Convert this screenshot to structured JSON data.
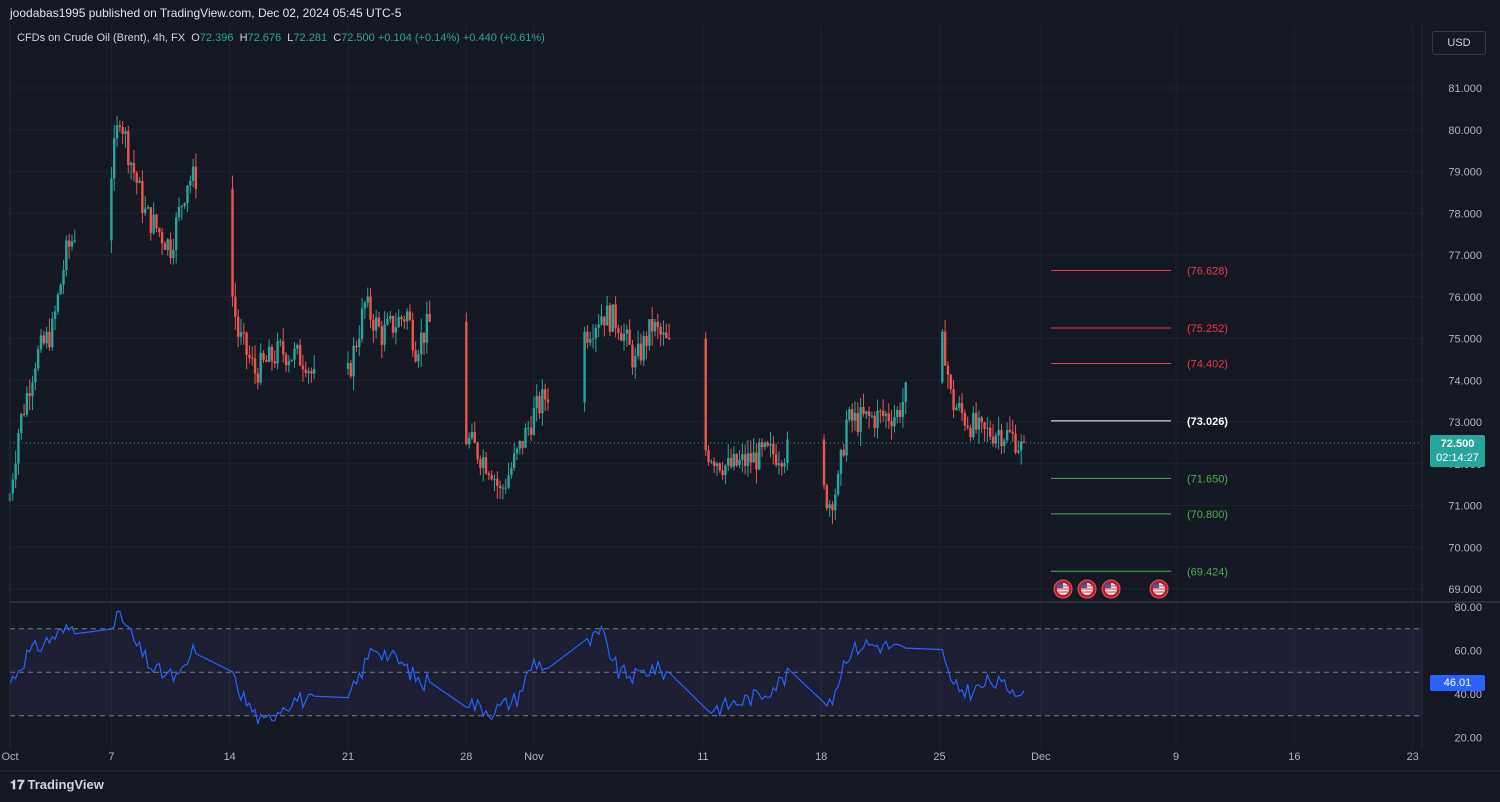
{
  "header": {
    "published": "joodabas1995 published on TradingView.com, Dec 02, 2024 05:45 UTC-5",
    "symbol": "CFDs on Crude Oil (Brent), 4h, FX",
    "ohlc": {
      "O": "72.396",
      "H": "72.676",
      "L": "72.281",
      "C": "72.500"
    },
    "change": "+0.104 (+0.14%)",
    "change2": "+0.440 (+0.61%)"
  },
  "currency_button": "USD",
  "price_tag": {
    "price": "72.500",
    "countdown": "02:14:27"
  },
  "rsi_tag": "46.01",
  "footer": {
    "logo_text": "TradingView"
  },
  "colors": {
    "up": "#26a69a",
    "down": "#ef5350",
    "rsi": "#2962ff",
    "background": "#141823"
  },
  "chart_data": [
    {
      "type": "candlestick",
      "title": "CFDs on Crude Oil (Brent), 4h, FX",
      "currency": "USD",
      "ylim": [
        69.0,
        81.0
      ],
      "y_ticks": [
        "81.000",
        "80.000",
        "79.000",
        "78.000",
        "77.000",
        "76.000",
        "75.000",
        "74.000",
        "73.000",
        "72.000",
        "71.000",
        "70.000",
        "69.000"
      ],
      "x_ticks": [
        {
          "label": "Oct",
          "day": 1
        },
        {
          "label": "7",
          "day": 7
        },
        {
          "label": "14",
          "day": 14
        },
        {
          "label": "21",
          "day": 21
        },
        {
          "label": "28",
          "day": 28
        },
        {
          "label": "Nov",
          "day": 32
        },
        {
          "label": "11",
          "day": 42
        },
        {
          "label": "18",
          "day": 49
        },
        {
          "label": "25",
          "day": 56
        },
        {
          "label": "Dec",
          "day": 62
        },
        {
          "label": "9",
          "day": 70
        },
        {
          "label": "16",
          "day": 77
        },
        {
          "label": "23",
          "day": 84
        }
      ],
      "close_anchors": [
        [
          1,
          71.3
        ],
        [
          1.5,
          72.8
        ],
        [
          2.5,
          74.5
        ],
        [
          3.5,
          75.2
        ],
        [
          4.3,
          77.0
        ],
        [
          5.5,
          78.2
        ],
        [
          7.0,
          79.0
        ],
        [
          7.5,
          80.4
        ],
        [
          8.0,
          79.5
        ],
        [
          9.0,
          78.0
        ],
        [
          10.5,
          77.2
        ],
        [
          11.5,
          78.8
        ],
        [
          12.5,
          78.9
        ],
        [
          13.5,
          77.8
        ],
        [
          14.5,
          75.1
        ],
        [
          15.5,
          74.2
        ],
        [
          17.0,
          74.7
        ],
        [
          18.5,
          74.5
        ],
        [
          20.0,
          73.0
        ],
        [
          21.0,
          74.1
        ],
        [
          22.0,
          75.8
        ],
        [
          23.0,
          75.1
        ],
        [
          24.5,
          75.6
        ],
        [
          25.0,
          74.8
        ],
        [
          26.5,
          75.8
        ],
        [
          27.5,
          74.4
        ],
        [
          28.0,
          72.6
        ],
        [
          29.5,
          71.9
        ],
        [
          30.0,
          71.3
        ],
        [
          31.0,
          72.2
        ],
        [
          32.0,
          73.2
        ],
        [
          33.0,
          73.8
        ],
        [
          34.0,
          74.3
        ],
        [
          35.0,
          75.1
        ],
        [
          36.0,
          75.6
        ],
        [
          37.0,
          75.4
        ],
        [
          38.0,
          74.4
        ],
        [
          39.0,
          75.3
        ],
        [
          40.0,
          74.8
        ],
        [
          41.0,
          73.8
        ],
        [
          42.0,
          72.4
        ],
        [
          43.5,
          71.9
        ],
        [
          45.5,
          72.2
        ],
        [
          47.0,
          72.3
        ],
        [
          48.5,
          71.7
        ],
        [
          49.5,
          71.1
        ],
        [
          50.0,
          71.5
        ],
        [
          50.5,
          73.0
        ],
        [
          52.0,
          73.1
        ],
        [
          53.5,
          73.2
        ],
        [
          54.5,
          74.1
        ],
        [
          55.5,
          75.0
        ],
        [
          56.3,
          74.8
        ],
        [
          56.7,
          73.5
        ],
        [
          57.5,
          73.1
        ],
        [
          58.5,
          72.7
        ],
        [
          59.5,
          72.8
        ],
        [
          60.5,
          72.6
        ],
        [
          61.5,
          71.9
        ],
        [
          62.2,
          72.5
        ]
      ],
      "last_close": 72.5,
      "levels": [
        {
          "label": "(76.628)",
          "value": 76.628,
          "color": "#f23645"
        },
        {
          "label": "(75.252)",
          "value": 75.252,
          "color": "#f23645"
        },
        {
          "label": "(74.402)",
          "value": 74.402,
          "color": "#f23645"
        },
        {
          "label": "(73.026)",
          "value": 73.026,
          "color": "#ffffff"
        },
        {
          "label": "(71.650)",
          "value": 71.65,
          "color": "#4caf50"
        },
        {
          "label": "(70.800)",
          "value": 70.8,
          "color": "#4caf50"
        },
        {
          "label": "(69.424)",
          "value": 69.424,
          "color": "#4caf50"
        }
      ],
      "event_flags": [
        "us-flag-icon",
        "us-flag-icon",
        "us-flag-icon",
        "us-flag-icon"
      ]
    },
    {
      "type": "line",
      "title": "RSI",
      "ylim": [
        20,
        80
      ],
      "y_ticks": [
        "80.00",
        "60.00",
        "40.00",
        "20.00"
      ],
      "bands": [
        70,
        50,
        30
      ],
      "last_value": 46.01,
      "anchors": [
        [
          1,
          45
        ],
        [
          2,
          58
        ],
        [
          3.5,
          66
        ],
        [
          5,
          72
        ],
        [
          6.5,
          70
        ],
        [
          7.5,
          77
        ],
        [
          8.5,
          62
        ],
        [
          9.5,
          51
        ],
        [
          11,
          47
        ],
        [
          12,
          62
        ],
        [
          13,
          60
        ],
        [
          14,
          50
        ],
        [
          15,
          36
        ],
        [
          16,
          26
        ],
        [
          17,
          34
        ],
        [
          18,
          38
        ],
        [
          19.5,
          35
        ],
        [
          20.5,
          30
        ],
        [
          21.5,
          45
        ],
        [
          22.5,
          62
        ],
        [
          24,
          55
        ],
        [
          25.5,
          44
        ],
        [
          26.5,
          58
        ],
        [
          27.5,
          40
        ],
        [
          28.5,
          35
        ],
        [
          29.5,
          32
        ],
        [
          31,
          38
        ],
        [
          32,
          55
        ],
        [
          33.5,
          50
        ],
        [
          35,
          62
        ],
        [
          36,
          68
        ],
        [
          37,
          50
        ],
        [
          38,
          48
        ],
        [
          39,
          52
        ],
        [
          40.5,
          48
        ],
        [
          41.5,
          38
        ],
        [
          42.5,
          33
        ],
        [
          44,
          36
        ],
        [
          45.5,
          40
        ],
        [
          47,
          48
        ],
        [
          48.5,
          42
        ],
        [
          49.5,
          34
        ],
        [
          50.5,
          58
        ],
        [
          51.5,
          63
        ],
        [
          53,
          62
        ],
        [
          54.5,
          58
        ],
        [
          55.5,
          62
        ],
        [
          56.3,
          58
        ],
        [
          56.7,
          43
        ],
        [
          58,
          41
        ],
        [
          59,
          46
        ],
        [
          60,
          43
        ],
        [
          61,
          42
        ],
        [
          61.7,
          40
        ],
        [
          62.2,
          46
        ]
      ]
    }
  ]
}
